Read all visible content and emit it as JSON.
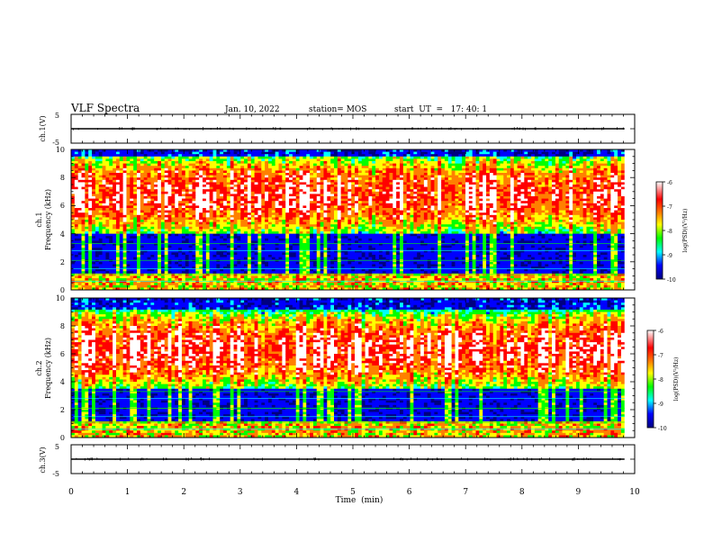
{
  "header": {
    "title": "VLF Spectra",
    "date": "Jan. 10, 2022",
    "station": "station= MOS",
    "start": "start  UT  =   17: 40: 1"
  },
  "colors": {
    "spectrogram": [
      "#000080",
      "#0000ff",
      "#00ffff",
      "#00ff00",
      "#ffff00",
      "#ff8000",
      "#ff0000",
      "#ffffff"
    ]
  },
  "chart_data": [
    {
      "type": "line",
      "name": "ch1-waveform",
      "ylabel": "ch.1(V)",
      "ylim": [
        -5,
        5
      ],
      "ytick_labels": [
        "5",
        "-5"
      ],
      "trace_level": 0
    },
    {
      "type": "heatmap",
      "name": "ch1-spectrogram",
      "ylabel_line1": "ch.1",
      "ylabel_line2": "Frequency (kHz)",
      "ylim": [
        0,
        10
      ],
      "ytick_labels": [
        "10",
        "8",
        "6",
        "4",
        "2",
        "0"
      ],
      "band_khz": [
        4,
        9.5
      ],
      "colorbar": {
        "label": "log(PSD)(V²/Hz)",
        "range": [
          -10,
          -6
        ],
        "tick_labels": [
          "-6",
          "-7",
          "-8",
          "-9",
          "-10"
        ]
      }
    },
    {
      "type": "heatmap",
      "name": "ch2-spectrogram",
      "ylabel_line1": "ch.2",
      "ylabel_line2": "Frequency (kHz)",
      "ylim": [
        0,
        10
      ],
      "ytick_labels": [
        "10",
        "8",
        "6",
        "4",
        "2",
        "0"
      ],
      "band_khz": [
        3.5,
        9
      ],
      "colorbar": {
        "label": "log(PSD)(V²/Hz)",
        "range": [
          -10,
          -6
        ],
        "tick_labels": [
          "-6",
          "-7",
          "-8",
          "-9",
          "-10"
        ]
      }
    },
    {
      "type": "line",
      "name": "ch3-waveform",
      "ylabel": "ch.3(V)",
      "ylim": [
        -5,
        5
      ],
      "ytick_labels": [
        "5",
        "-5"
      ],
      "trace_level": 0
    }
  ],
  "xaxis": {
    "label": "Time  (min)",
    "range": [
      0,
      10
    ],
    "data_end": 9.82,
    "tick_labels": [
      "0",
      "1",
      "2",
      "3",
      "4",
      "5",
      "6",
      "7",
      "8",
      "9",
      "10"
    ]
  }
}
